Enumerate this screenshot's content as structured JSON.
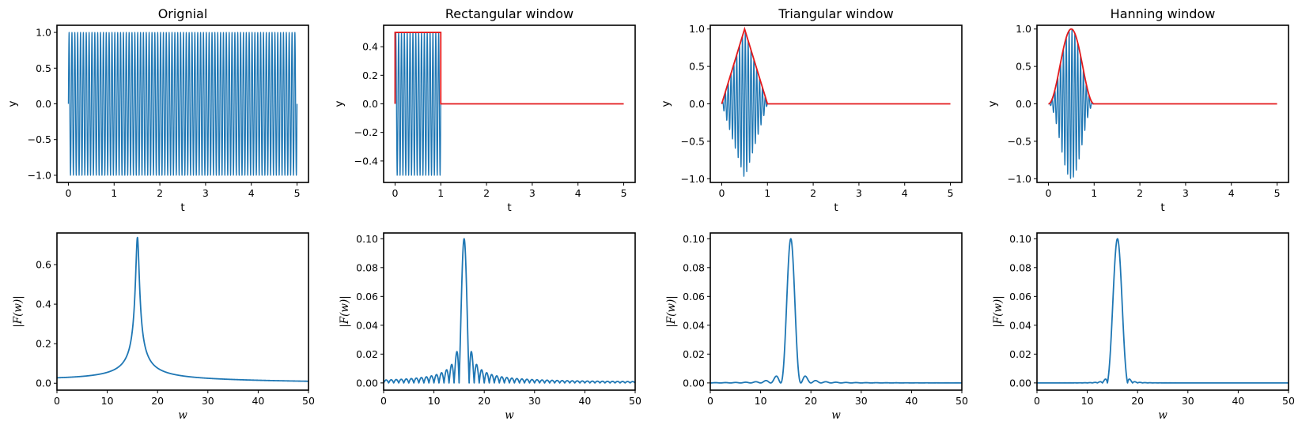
{
  "colors": {
    "signal": "#1f77b4",
    "envelope": "#e41a1c"
  },
  "chart_data": [
    {
      "type": "line",
      "title": "Orignial",
      "xlabel": "t",
      "ylabel": "y",
      "xlim": [
        -0.25,
        5.25
      ],
      "ylim": [
        -1.1,
        1.1
      ],
      "xticks": [
        0,
        1,
        2,
        3,
        4,
        5
      ],
      "xtick_labels": [
        "0",
        "1",
        "2",
        "3",
        "4",
        "5"
      ],
      "yticks": [
        -1.0,
        -0.5,
        0.0,
        0.5,
        1.0
      ],
      "ytick_labels": [
        "−1.0",
        "−0.5",
        "0.0",
        "0.5",
        "1.0"
      ],
      "grid": false,
      "signal": {
        "function": "sin(2*pi*f*t)",
        "frequency_hz": 16,
        "t_range": [
          0,
          5
        ],
        "amplitude": 1.0
      },
      "envelope": null
    },
    {
      "type": "line",
      "title": "Rectangular window",
      "xlabel": "t",
      "ylabel": "y",
      "xlim": [
        -0.25,
        5.25
      ],
      "ylim": [
        -0.55,
        0.55
      ],
      "xticks": [
        0,
        1,
        2,
        3,
        4,
        5
      ],
      "xtick_labels": [
        "0",
        "1",
        "2",
        "3",
        "4",
        "5"
      ],
      "yticks": [
        -0.4,
        -0.2,
        0.0,
        0.2,
        0.4
      ],
      "ytick_labels": [
        "−0.4",
        "−0.2",
        "0.0",
        "0.2",
        "0.4"
      ],
      "grid": false,
      "signal": {
        "function": "w(t)*sin(2*pi*f*t)",
        "frequency_hz": 16,
        "t_range": [
          0,
          1
        ]
      },
      "envelope": {
        "kind": "rectangular",
        "x": [
          0,
          0,
          1,
          1,
          5
        ],
        "y": [
          0,
          0.5,
          0.5,
          0,
          0
        ]
      }
    },
    {
      "type": "line",
      "title": "Triangular window",
      "xlabel": "t",
      "ylabel": "y",
      "xlim": [
        -0.25,
        5.25
      ],
      "ylim": [
        -1.05,
        1.05
      ],
      "xticks": [
        0,
        1,
        2,
        3,
        4,
        5
      ],
      "xtick_labels": [
        "0",
        "1",
        "2",
        "3",
        "4",
        "5"
      ],
      "yticks": [
        -1.0,
        -0.5,
        0.0,
        0.5,
        1.0
      ],
      "ytick_labels": [
        "−1.0",
        "−0.5",
        "0.0",
        "0.5",
        "1.0"
      ],
      "grid": false,
      "signal": {
        "function": "w(t)*sin(2*pi*f*t)",
        "frequency_hz": 16,
        "t_range": [
          0,
          1
        ]
      },
      "envelope": {
        "kind": "triangular",
        "x": [
          0,
          0.5,
          1,
          5
        ],
        "y": [
          0,
          1,
          0,
          0
        ]
      }
    },
    {
      "type": "line",
      "title": "Hanning window",
      "xlabel": "t",
      "ylabel": "y",
      "xlim": [
        -0.25,
        5.25
      ],
      "ylim": [
        -1.05,
        1.05
      ],
      "xticks": [
        0,
        1,
        2,
        3,
        4,
        5
      ],
      "xtick_labels": [
        "0",
        "1",
        "2",
        "3",
        "4",
        "5"
      ],
      "yticks": [
        -1.0,
        -0.5,
        0.0,
        0.5,
        1.0
      ],
      "ytick_labels": [
        "−1.0",
        "−0.5",
        "0.0",
        "0.5",
        "1.0"
      ],
      "grid": false,
      "signal": {
        "function": "w(t)*sin(2*pi*f*t)",
        "frequency_hz": 16,
        "t_range": [
          0,
          1
        ]
      },
      "envelope": {
        "kind": "hanning",
        "function": "0.5*(1-cos(2*pi*t))",
        "t_range": [
          0,
          1
        ],
        "tail": {
          "x": [
            1,
            5
          ],
          "y": [
            0,
            0
          ]
        }
      }
    },
    {
      "type": "line",
      "title": "",
      "xlabel": "w",
      "ylabel": "|F(w)|",
      "xlim": [
        0,
        50
      ],
      "ylim": [
        -0.035,
        0.76
      ],
      "xticks": [
        0,
        10,
        20,
        30,
        40,
        50
      ],
      "xtick_labels": [
        "0",
        "10",
        "20",
        "30",
        "40",
        "50"
      ],
      "yticks": [
        0.0,
        0.2,
        0.4,
        0.6
      ],
      "ytick_labels": [
        "0.0",
        "0.2",
        "0.4",
        "0.6"
      ],
      "grid": false,
      "spectrum": {
        "window": "rectangular",
        "duration_s": 5,
        "frequency": 16,
        "peak_w": 16,
        "peak_value": 0.73,
        "baseline_value": 0.01
      }
    },
    {
      "type": "line",
      "title": "",
      "xlabel": "w",
      "ylabel": "|F(w)|",
      "xlim": [
        0,
        50
      ],
      "ylim": [
        -0.005,
        0.104
      ],
      "xticks": [
        0,
        10,
        20,
        30,
        40,
        50
      ],
      "xtick_labels": [
        "0",
        "10",
        "20",
        "30",
        "40",
        "50"
      ],
      "yticks": [
        0.0,
        0.02,
        0.04,
        0.06,
        0.08,
        0.1
      ],
      "ytick_labels": [
        "0.00",
        "0.02",
        "0.04",
        "0.06",
        "0.08",
        "0.10"
      ],
      "grid": false,
      "spectrum": {
        "window": "rectangular",
        "duration_s": 1,
        "frequency": 16,
        "peak_w": 16,
        "peak_value": 0.1
      }
    },
    {
      "type": "line",
      "title": "",
      "xlabel": "w",
      "ylabel": "|F(w)|",
      "xlim": [
        0,
        50
      ],
      "ylim": [
        -0.005,
        0.104
      ],
      "xticks": [
        0,
        10,
        20,
        30,
        40,
        50
      ],
      "xtick_labels": [
        "0",
        "10",
        "20",
        "30",
        "40",
        "50"
      ],
      "yticks": [
        0.0,
        0.02,
        0.04,
        0.06,
        0.08,
        0.1
      ],
      "ytick_labels": [
        "0.00",
        "0.02",
        "0.04",
        "0.06",
        "0.08",
        "0.10"
      ],
      "grid": false,
      "spectrum": {
        "window": "triangular",
        "duration_s": 1,
        "frequency": 16,
        "peak_w": 16,
        "peak_value": 0.1
      }
    },
    {
      "type": "line",
      "title": "",
      "xlabel": "w",
      "ylabel": "|F(w)|",
      "xlim": [
        0,
        50
      ],
      "ylim": [
        -0.005,
        0.104
      ],
      "xticks": [
        0,
        10,
        20,
        30,
        40,
        50
      ],
      "xtick_labels": [
        "0",
        "10",
        "20",
        "30",
        "40",
        "50"
      ],
      "yticks": [
        0.0,
        0.02,
        0.04,
        0.06,
        0.08,
        0.1
      ],
      "ytick_labels": [
        "0.00",
        "0.02",
        "0.04",
        "0.06",
        "0.08",
        "0.10"
      ],
      "grid": false,
      "spectrum": {
        "window": "hanning",
        "duration_s": 1,
        "frequency": 16,
        "peak_w": 16,
        "peak_value": 0.1
      }
    }
  ]
}
